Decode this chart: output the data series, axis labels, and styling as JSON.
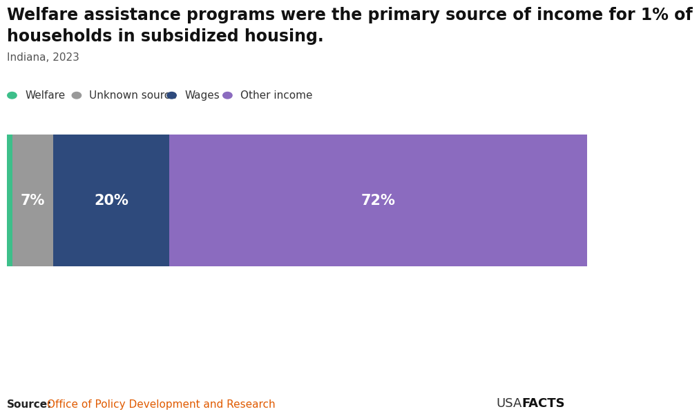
{
  "title_line1": "Welfare assistance programs were the primary source of income for 1% of",
  "title_line2": "households in subsidized housing.",
  "subtitle": "Indiana, 2023",
  "categories": [
    "Welfare",
    "Unknown source",
    "Wages",
    "Other income"
  ],
  "values": [
    1,
    7,
    20,
    72
  ],
  "colors": [
    "#3dbf8a",
    "#999999",
    "#2e4a7c",
    "#8b6bbf"
  ],
  "labels": [
    "",
    "7%",
    "20%",
    "72%"
  ],
  "source_bold": "Source:",
  "source_text": "Office of Policy Development and Research",
  "brand_usa": "USA",
  "brand_facts": "FACTS",
  "background_color": "#ffffff",
  "title_fontsize": 17,
  "subtitle_fontsize": 11,
  "label_fontsize": 15,
  "legend_fontsize": 11,
  "source_fontsize": 11,
  "brand_fontsize": 13
}
